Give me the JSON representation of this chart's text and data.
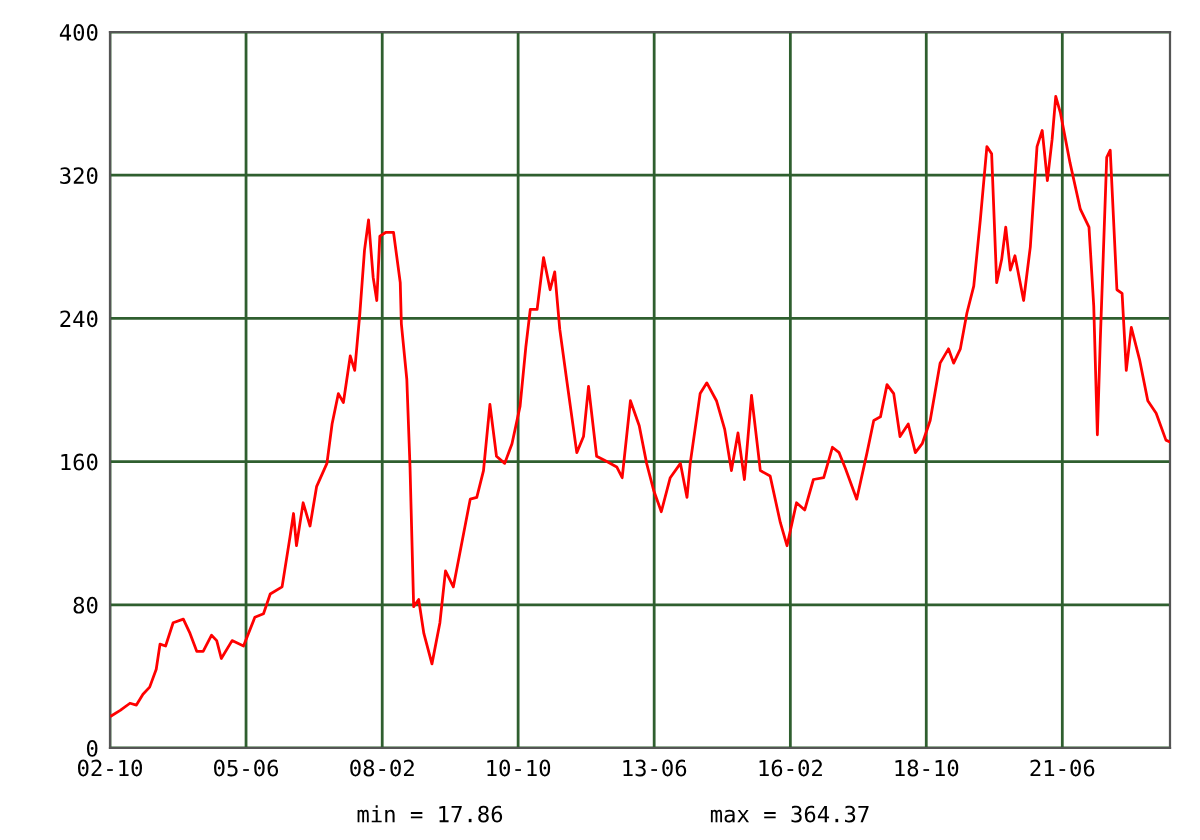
{
  "chart_data": {
    "type": "line",
    "x": [
      "2002-10-12",
      "2002-12-13",
      "2003-02-21",
      "2003-04-08",
      "2003-05-25",
      "2003-07-12",
      "2003-08-28",
      "2003-09-24",
      "2003-11-03",
      "2003-12-27",
      "2004-03-09",
      "2004-04-26",
      "2004-06-13",
      "2004-07-29",
      "2004-09-27",
      "2004-11-03",
      "2004-12-06",
      "2005-02-21",
      "2005-05-14",
      "2005-08-03",
      "2005-10-04",
      "2005-11-21",
      "2006-02-14",
      "2006-04-12",
      "2006-05-07",
      "2006-05-28",
      "2006-07-15",
      "2006-09-02",
      "2006-10-19",
      "2007-01-01",
      "2007-02-07",
      "2007-03-24",
      "2007-04-29",
      "2007-06-17",
      "2007-07-19",
      "2007-08-25",
      "2007-09-27",
      "2007-10-26",
      "2007-11-28",
      "2007-12-24",
      "2008-01-15",
      "2008-02-25",
      "2008-04-22",
      "2008-06-09",
      "2008-06-17",
      "2008-07-26",
      "2008-08-18",
      "2008-09-13",
      "2008-10-19",
      "2008-11-25",
      "2009-01-22",
      "2009-03-20",
      "2009-04-29",
      "2009-06-24",
      "2009-09-06",
      "2009-10-23",
      "2009-12-09",
      "2010-01-26",
      "2010-03-13",
      "2010-04-29",
      "2010-06-27",
      "2010-08-18",
      "2010-10-15",
      "2010-11-25",
      "2010-12-27",
      "2011-02-14",
      "2011-04-01",
      "2011-05-18",
      "2011-06-20",
      "2011-07-26",
      "2011-09-13",
      "2011-11-25",
      "2012-01-12",
      "2012-02-17",
      "2012-04-15",
      "2012-06-27",
      "2012-09-06",
      "2012-10-15",
      "2012-12-13",
      "2013-02-14",
      "2013-04-08",
      "2013-05-28",
      "2013-07-22",
      "2013-09-24",
      "2013-12-06",
      "2014-01-22",
      "2014-02-14",
      "2014-04-26",
      "2014-06-13",
      "2014-08-21",
      "2014-10-19",
      "2014-12-06",
      "2015-01-22",
      "2015-03-09",
      "2015-04-29",
      "2015-07-01",
      "2015-09-09",
      "2015-11-21",
      "2016-01-08",
      "2016-03-16",
      "2016-05-14",
      "2016-07-15",
      "2016-09-27",
      "2016-11-28",
      "2017-01-15",
      "2017-03-02",
      "2017-05-21",
      "2017-08-03",
      "2017-09-20",
      "2017-11-07",
      "2017-12-24",
      "2018-02-10",
      "2018-03-27",
      "2018-05-25",
      "2018-07-15",
      "2018-09-02",
      "2018-10-29",
      "2019-01-08",
      "2019-03-09",
      "2019-04-15",
      "2019-06-02",
      "2019-07-19",
      "2019-09-06",
      "2019-10-23",
      "2019-12-09",
      "2020-01-12",
      "2020-02-17",
      "2020-03-24",
      "2020-04-22",
      "2020-05-25",
      "2020-06-27",
      "2020-08-28",
      "2020-10-15",
      "2020-12-02",
      "2021-01-08",
      "2021-02-14",
      "2021-03-20",
      "2021-04-15",
      "2021-05-18",
      "2021-07-26",
      "2021-10-08",
      "2021-12-09",
      "2022-01-12",
      "2022-02-07",
      "2022-02-28",
      "2022-04-15",
      "2022-05-10",
      "2022-06-27",
      "2022-08-03",
      "2022-09-02",
      "2022-10-08",
      "2022-12-06",
      "2023-02-03",
      "2023-04-04",
      "2023-06-13",
      "2023-07-12"
    ],
    "series": [
      {
        "color": "#ff0000",
        "values": [
          18,
          21,
          25,
          24,
          30,
          34,
          44,
          58,
          57,
          70,
          72,
          64,
          54,
          54,
          63,
          60,
          50,
          60,
          57,
          73,
          75,
          86,
          90,
          118,
          131,
          113,
          137,
          124,
          146,
          159,
          181,
          198,
          193,
          219,
          211,
          243,
          278,
          295,
          263,
          250,
          286,
          288,
          288,
          260,
          237,
          206,
          157,
          79,
          83,
          64,
          47,
          70,
          99,
          90,
          120,
          139,
          140,
          155,
          192,
          163,
          159,
          170,
          191,
          224,
          245,
          245,
          274,
          256,
          266,
          234,
          206,
          165,
          174,
          202,
          163,
          160,
          157,
          151,
          194,
          180,
          159,
          144,
          132,
          151,
          159,
          140,
          159,
          198,
          204,
          194,
          178,
          155,
          176,
          150,
          197,
          155,
          152,
          126,
          113,
          137,
          133,
          150,
          151,
          168,
          165,
          156,
          139,
          165,
          183,
          185,
          203,
          198,
          174,
          181,
          165,
          170,
          183,
          215,
          223,
          215,
          223,
          243,
          258,
          295,
          336,
          332,
          260,
          273,
          291,
          267,
          275,
          250,
          280,
          336,
          345,
          317,
          340,
          364,
          355,
          327,
          301,
          291,
          247,
          175,
          228,
          330,
          334,
          256,
          254,
          211,
          235,
          217,
          194,
          187,
          172,
          171
        ]
      }
    ],
    "xlim": [
      "2002-10-01",
      "2023-07-12"
    ],
    "xticks": [
      {
        "value": "2002-10-01",
        "label": "02-10"
      },
      {
        "value": "2005-06-01",
        "label": "05-06"
      },
      {
        "value": "2008-02-01",
        "label": "08-02"
      },
      {
        "value": "2010-10-01",
        "label": "10-10"
      },
      {
        "value": "2013-06-01",
        "label": "13-06"
      },
      {
        "value": "2016-02-01",
        "label": "16-02"
      },
      {
        "value": "2018-10-01",
        "label": "18-10"
      },
      {
        "value": "2021-06-01",
        "label": "21-06"
      }
    ],
    "ylim": [
      0,
      400
    ],
    "yticks": [
      0,
      80,
      160,
      240,
      320,
      400
    ],
    "grid": true,
    "line_style": "solid",
    "marker": "none",
    "annotations": [
      "min = 17.86",
      "max = 364.37"
    ]
  }
}
